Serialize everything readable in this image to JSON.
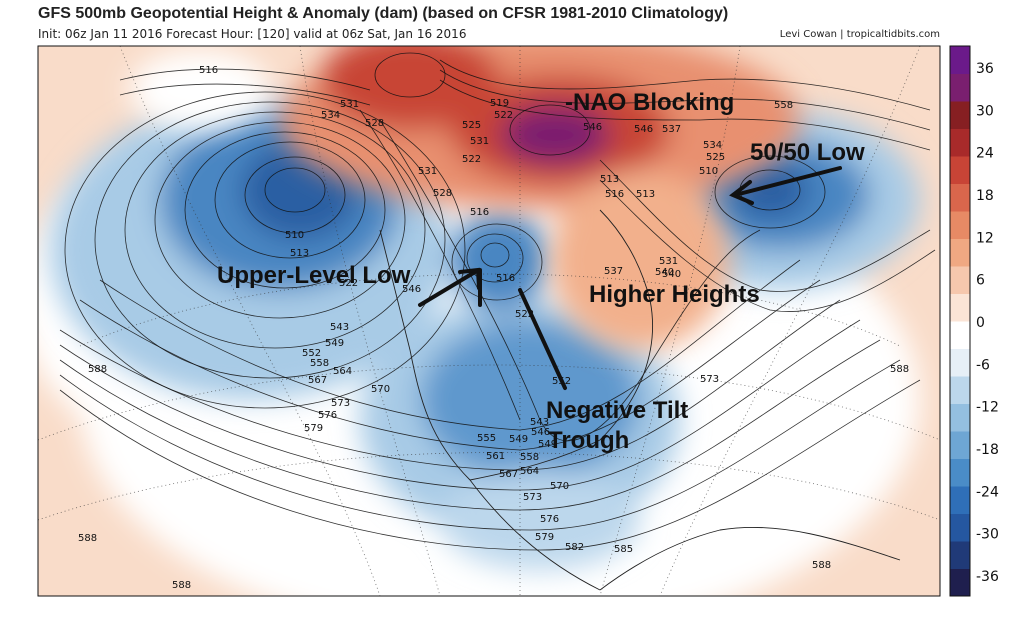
{
  "header": {
    "title": "GFS 500mb Geopotential Height & Anomaly (dam) (based on CFSR 1981-2010 Climatology)",
    "subtitle": "Init: 06z Jan 11 2016   Forecast Hour: [120]   valid at 06z Sat, Jan 16 2016",
    "credit": "Levi Cowan | tropicaltidbits.com"
  },
  "colorbar": {
    "ticks": [
      "36",
      "30",
      "24",
      "18",
      "12",
      "6",
      "0",
      "-6",
      "-12",
      "-18",
      "-24",
      "-30",
      "-36"
    ],
    "colors": [
      "#1f1f4e",
      "#203a78",
      "#2557a0",
      "#2f6fb8",
      "#4a8cc7",
      "#6ea6d4",
      "#94bfe0",
      "#bcd7ec",
      "#e6eff7",
      "#ffffff",
      "#fbe4d6",
      "#f6c7ad",
      "#f0a882",
      "#e78a65",
      "#d9664c",
      "#c84436",
      "#a82a2a",
      "#861f22",
      "#7a1f6f",
      "#6b1a8a"
    ]
  },
  "annotations": {
    "nao": "-NAO Blocking",
    "low5050": "50/50 Low",
    "ull": "Upper-Level Low",
    "higher": "Higher Heights",
    "negtilt1": "Negative Tilt",
    "negtilt2": "Trough"
  },
  "contour_labels": [
    "516",
    "531",
    "534",
    "528",
    "510",
    "513",
    "519",
    "522",
    "525",
    "531",
    "537",
    "540",
    "543",
    "549",
    "552",
    "558",
    "564",
    "567",
    "570",
    "573",
    "576",
    "579",
    "582",
    "585",
    "588",
    "588",
    "588",
    "588",
    "588",
    "546",
    "546",
    "558",
    "534",
    "525",
    "513",
    "516",
    "537",
    "531",
    "540",
    "510",
    "546",
    "522",
    "522",
    "528",
    "516",
    "555",
    "561",
    "567",
    "573",
    "576",
    "579",
    "549",
    "558",
    "564",
    "570",
    "573",
    "543",
    "546",
    "549",
    "552",
    "531",
    "522",
    "513",
    "516"
  ]
}
